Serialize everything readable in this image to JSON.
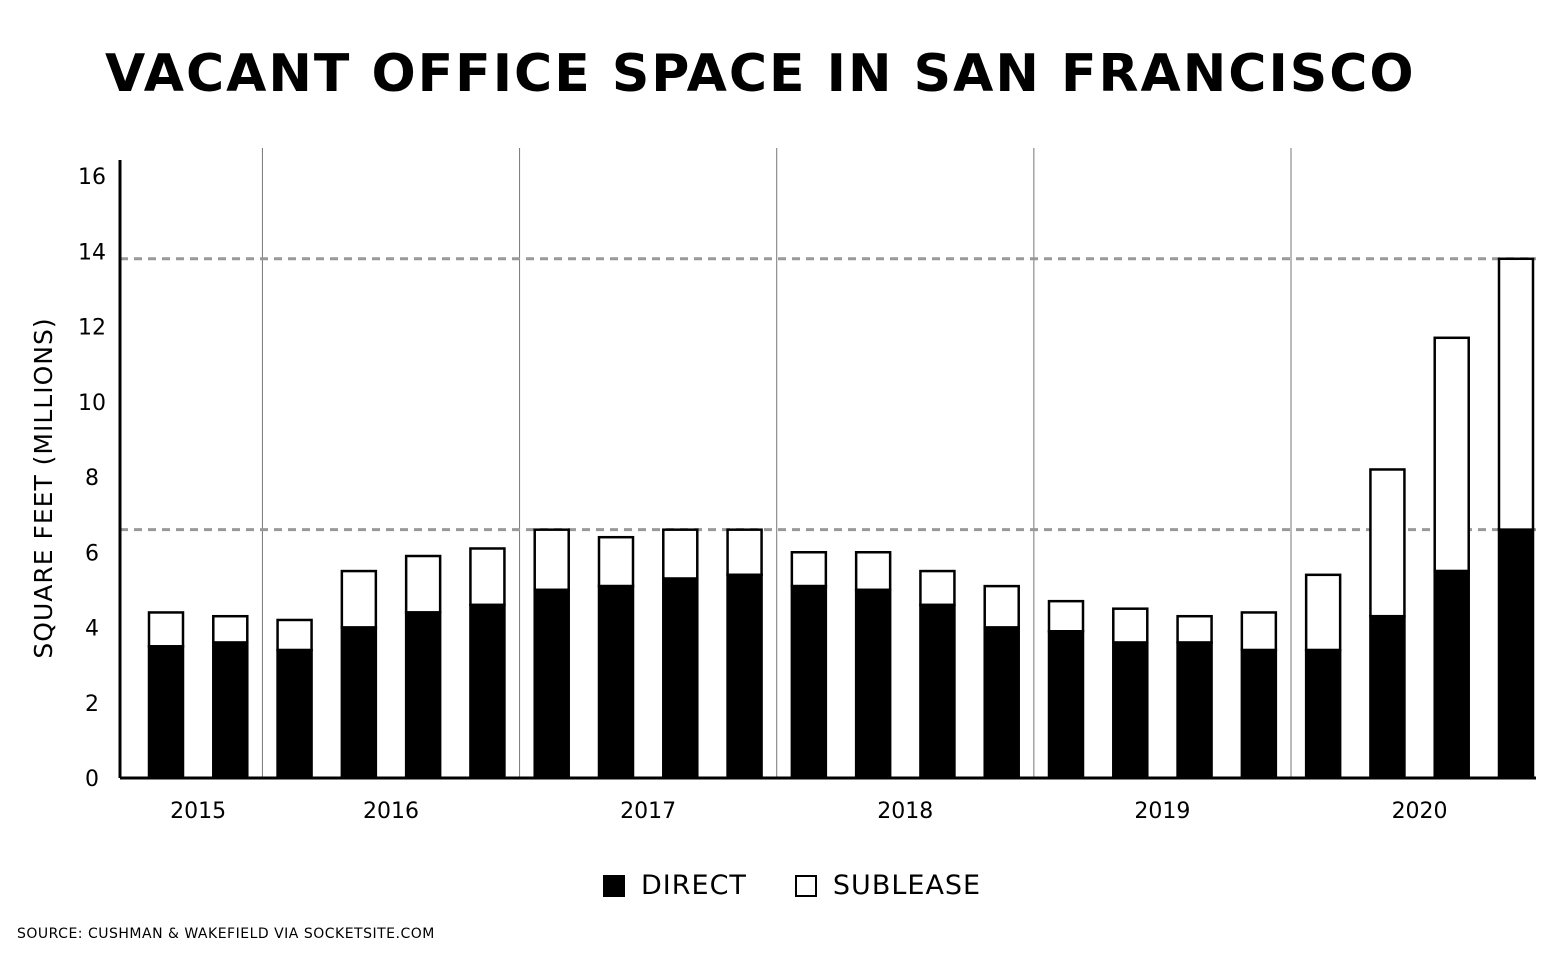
{
  "chart_data": {
    "type": "bar",
    "stacked": true,
    "title": "VACANT OFFICE SPACE IN SAN FRANCISCO",
    "ylabel": "SQUARE FEET (MILLIONS)",
    "xlabel": "",
    "ylim": [
      0,
      16
    ],
    "yticks": [
      0,
      2,
      4,
      6,
      8,
      10,
      12,
      14,
      16
    ],
    "year_groups": [
      {
        "label": "2015",
        "bars": 2
      },
      {
        "label": "2016",
        "bars": 4
      },
      {
        "label": "2017",
        "bars": 4
      },
      {
        "label": "2018",
        "bars": 4
      },
      {
        "label": "2019",
        "bars": 4
      },
      {
        "label": "2020",
        "bars": 4
      }
    ],
    "series": [
      {
        "name": "DIRECT",
        "values": [
          3.5,
          3.6,
          3.4,
          4.0,
          4.4,
          4.6,
          5.0,
          5.1,
          5.3,
          5.4,
          5.1,
          5.0,
          4.6,
          4.0,
          3.9,
          3.6,
          3.6,
          3.4,
          3.4,
          4.3,
          5.5,
          6.6
        ]
      },
      {
        "name": "SUBLEASE",
        "values": [
          0.9,
          0.7,
          0.8,
          1.5,
          1.5,
          1.5,
          1.6,
          1.3,
          1.3,
          1.2,
          0.9,
          1.0,
          0.9,
          1.1,
          0.8,
          0.9,
          0.7,
          1.0,
          2.0,
          3.9,
          6.2,
          7.2
        ]
      }
    ],
    "reference_lines": [
      6.6,
      13.8
    ],
    "colors": {
      "direct": "#000000",
      "sublease": "#ffffff",
      "reference": "#999999"
    },
    "legend_position": "bottom-center",
    "source": "SOURCE: CUSHMAN & WAKEFIELD VIA SOCKETSITE.COM"
  }
}
